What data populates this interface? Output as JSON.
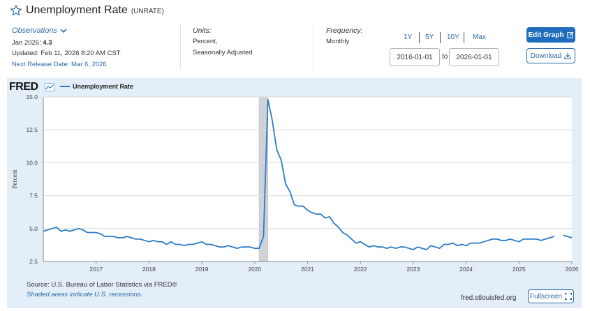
{
  "header": {
    "title": "Unemployment Rate",
    "series_id": "(UNRATE)"
  },
  "observations": {
    "label": "Observations",
    "latest_prefix": "Jan 2026:",
    "latest_value": "4.3",
    "updated": "Updated: Feb 11, 2026 8:20 AM CST",
    "next_release": "Next Release Date: Mar 6, 2026"
  },
  "units": {
    "label": "Units:",
    "line1": "Percent,",
    "line2": "Seasonally Adjusted"
  },
  "frequency": {
    "label": "Frequency:",
    "value": "Monthly"
  },
  "range": {
    "buttons": [
      "1Y",
      "5Y",
      "10Y",
      "Max"
    ],
    "start": "2016-01-01",
    "to": "to",
    "end": "2026-01-01"
  },
  "actions": {
    "edit": "Edit Graph",
    "download": "Download",
    "fullscreen": "Fullscreen"
  },
  "footer": {
    "source": "Source: U.S. Bureau of Labor Statistics via FRED®",
    "shade_note": "Shaded areas indicate U.S. recessions.",
    "url": "fred.stlouisfed.org"
  },
  "logo": "FRED",
  "colors": {
    "line": "#2b7bc6",
    "panel": "#e3eef8",
    "link": "#2c6aa6",
    "button": "#1f6dbc",
    "recession": "#cfd3d8"
  },
  "chart_data": {
    "type": "line",
    "title": "",
    "xlabel": "",
    "ylabel": "Percent",
    "legend": [
      "Unemployment Rate"
    ],
    "ylim": [
      2.5,
      15.0
    ],
    "yticks": [
      "2.5",
      "5.0",
      "7.5",
      "10.0",
      "12.5",
      "15.0"
    ],
    "xlim": [
      "2016-01",
      "2026-01"
    ],
    "xticks": [
      "2017",
      "2018",
      "2019",
      "2020",
      "2021",
      "2022",
      "2023",
      "2024",
      "2025",
      "2026"
    ],
    "grid": true,
    "recessions": [
      {
        "start": "2020-02",
        "end": "2020-04"
      }
    ],
    "series": [
      {
        "name": "Unemployment Rate",
        "x": [
          "2016-01",
          "2016-02",
          "2016-03",
          "2016-04",
          "2016-05",
          "2016-06",
          "2016-07",
          "2016-08",
          "2016-09",
          "2016-10",
          "2016-11",
          "2016-12",
          "2017-01",
          "2017-02",
          "2017-03",
          "2017-04",
          "2017-05",
          "2017-06",
          "2017-07",
          "2017-08",
          "2017-09",
          "2017-10",
          "2017-11",
          "2017-12",
          "2018-01",
          "2018-02",
          "2018-03",
          "2018-04",
          "2018-05",
          "2018-06",
          "2018-07",
          "2018-08",
          "2018-09",
          "2018-10",
          "2018-11",
          "2018-12",
          "2019-01",
          "2019-02",
          "2019-03",
          "2019-04",
          "2019-05",
          "2019-06",
          "2019-07",
          "2019-08",
          "2019-09",
          "2019-10",
          "2019-11",
          "2019-12",
          "2020-01",
          "2020-02",
          "2020-03",
          "2020-04",
          "2020-05",
          "2020-06",
          "2020-07",
          "2020-08",
          "2020-09",
          "2020-10",
          "2020-11",
          "2020-12",
          "2021-01",
          "2021-02",
          "2021-03",
          "2021-04",
          "2021-05",
          "2021-06",
          "2021-07",
          "2021-08",
          "2021-09",
          "2021-10",
          "2021-11",
          "2021-12",
          "2022-01",
          "2022-02",
          "2022-03",
          "2022-04",
          "2022-05",
          "2022-06",
          "2022-07",
          "2022-08",
          "2022-09",
          "2022-10",
          "2022-11",
          "2022-12",
          "2023-01",
          "2023-02",
          "2023-03",
          "2023-04",
          "2023-05",
          "2023-06",
          "2023-07",
          "2023-08",
          "2023-09",
          "2023-10",
          "2023-11",
          "2023-12",
          "2024-01",
          "2024-02",
          "2024-03",
          "2024-04",
          "2024-05",
          "2024-06",
          "2024-07",
          "2024-08",
          "2024-09",
          "2024-10",
          "2024-11",
          "2024-12",
          "2025-01",
          "2025-02",
          "2025-03",
          "2025-04",
          "2025-05",
          "2025-06",
          "2025-07",
          "2025-08",
          "2025-09",
          "2025-10",
          "2025-11",
          "2025-12",
          "2026-01"
        ],
        "values": [
          4.8,
          4.9,
          5.0,
          5.1,
          4.8,
          4.9,
          4.8,
          4.9,
          5.0,
          4.9,
          4.7,
          4.7,
          4.7,
          4.6,
          4.4,
          4.4,
          4.4,
          4.3,
          4.3,
          4.4,
          4.3,
          4.2,
          4.2,
          4.1,
          4.0,
          4.1,
          4.0,
          4.0,
          3.8,
          4.0,
          3.8,
          3.8,
          3.7,
          3.8,
          3.8,
          3.9,
          4.0,
          3.8,
          3.8,
          3.7,
          3.6,
          3.6,
          3.7,
          3.6,
          3.5,
          3.6,
          3.6,
          3.6,
          3.5,
          3.5,
          4.4,
          14.8,
          13.2,
          11.0,
          10.2,
          8.4,
          7.8,
          6.8,
          6.7,
          6.7,
          6.4,
          6.2,
          6.1,
          6.1,
          5.8,
          5.9,
          5.4,
          5.1,
          4.7,
          4.5,
          4.2,
          3.9,
          4.0,
          3.8,
          3.6,
          3.7,
          3.6,
          3.6,
          3.5,
          3.6,
          3.5,
          3.6,
          3.6,
          3.5,
          3.4,
          3.6,
          3.5,
          3.4,
          3.7,
          3.6,
          3.5,
          3.8,
          3.8,
          3.9,
          3.7,
          3.8,
          3.7,
          3.9,
          3.9,
          3.9,
          4.0,
          4.1,
          4.2,
          4.2,
          4.1,
          4.1,
          4.2,
          4.1,
          4.0,
          4.2,
          4.2,
          4.2,
          4.2,
          4.1,
          4.2,
          4.3,
          4.4,
          null,
          4.5,
          4.4,
          4.3
        ]
      }
    ]
  }
}
